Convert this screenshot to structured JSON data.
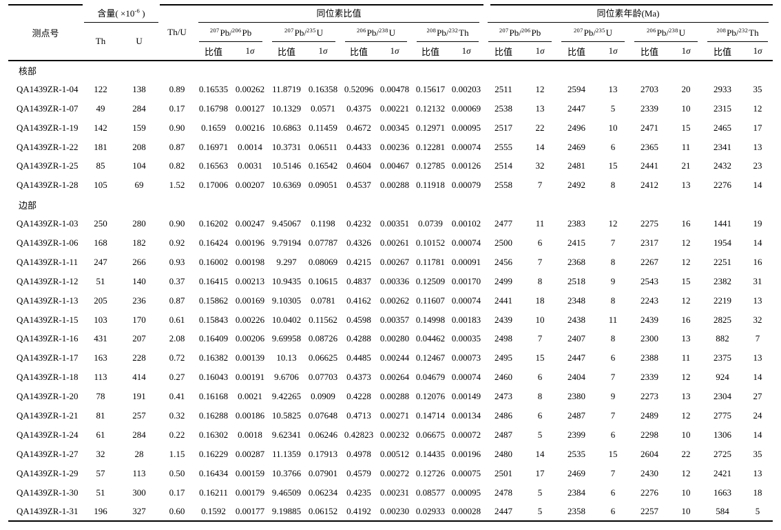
{
  "table": {
    "header": {
      "spot": "测点号",
      "content_group": {
        "prefix": "含量( ×10",
        "sup": "-6",
        "suffix": " )"
      },
      "th": "Th",
      "u": "U",
      "th_u": "Th/U",
      "ratio_group": "同位素比值",
      "age_group": "同位素年龄(Ma)",
      "isotopes": [
        {
          "sup1": "207",
          "base1": "Pb/",
          "sup2": "206",
          "base2": "Pb"
        },
        {
          "sup1": "207",
          "base1": "Pb/",
          "sup2": "235",
          "base2": "U"
        },
        {
          "sup1": "206",
          "base1": "Pb/",
          "sup2": "238",
          "base2": "U"
        },
        {
          "sup1": "208",
          "base1": "Pb/",
          "sup2": "232",
          "base2": "Th"
        }
      ],
      "sub": {
        "ratio": "比值",
        "sigma_num": "1",
        "sigma_sym": "σ"
      }
    },
    "sections": [
      {
        "label": "核部",
        "rows": [
          [
            "QA1439ZR-1-04",
            "122",
            "138",
            "0.89",
            "0.16535",
            "0.00262",
            "11.8719",
            "0.16358",
            "0.52096",
            "0.00478",
            "0.15617",
            "0.00203",
            "2511",
            "12",
            "2594",
            "13",
            "2703",
            "20",
            "2933",
            "35"
          ],
          [
            "QA1439ZR-1-07",
            "49",
            "284",
            "0.17",
            "0.16798",
            "0.00127",
            "10.1329",
            "0.0571",
            "0.4375",
            "0.00221",
            "0.12132",
            "0.00069",
            "2538",
            "13",
            "2447",
            "5",
            "2339",
            "10",
            "2315",
            "12"
          ],
          [
            "QA1439ZR-1-19",
            "142",
            "159",
            "0.90",
            "0.1659",
            "0.00216",
            "10.6863",
            "0.11459",
            "0.4672",
            "0.00345",
            "0.12971",
            "0.00095",
            "2517",
            "22",
            "2496",
            "10",
            "2471",
            "15",
            "2465",
            "17"
          ],
          [
            "QA1439ZR-1-22",
            "181",
            "208",
            "0.87",
            "0.16971",
            "0.0014",
            "10.3731",
            "0.06511",
            "0.4433",
            "0.00236",
            "0.12281",
            "0.00074",
            "2555",
            "14",
            "2469",
            "6",
            "2365",
            "11",
            "2341",
            "13"
          ],
          [
            "QA1439ZR-1-25",
            "85",
            "104",
            "0.82",
            "0.16563",
            "0.0031",
            "10.5146",
            "0.16542",
            "0.4604",
            "0.00467",
            "0.12785",
            "0.00126",
            "2514",
            "32",
            "2481",
            "15",
            "2441",
            "21",
            "2432",
            "23"
          ],
          [
            "QA1439ZR-1-28",
            "105",
            "69",
            "1.52",
            "0.17006",
            "0.00207",
            "10.6369",
            "0.09051",
            "0.4537",
            "0.00288",
            "0.11918",
            "0.00079",
            "2558",
            "7",
            "2492",
            "8",
            "2412",
            "13",
            "2276",
            "14"
          ]
        ]
      },
      {
        "label": "边部",
        "rows": [
          [
            "QA1439ZR-1-03",
            "250",
            "280",
            "0.90",
            "0.16202",
            "0.00247",
            "9.45067",
            "0.1198",
            "0.4232",
            "0.00351",
            "0.0739",
            "0.00102",
            "2477",
            "11",
            "2383",
            "12",
            "2275",
            "16",
            "1441",
            "19"
          ],
          [
            "QA1439ZR-1-06",
            "168",
            "182",
            "0.92",
            "0.16424",
            "0.00196",
            "9.79194",
            "0.07787",
            "0.4326",
            "0.00261",
            "0.10152",
            "0.00074",
            "2500",
            "6",
            "2415",
            "7",
            "2317",
            "12",
            "1954",
            "14"
          ],
          [
            "QA1439ZR-1-11",
            "247",
            "266",
            "0.93",
            "0.16002",
            "0.00198",
            "9.297",
            "0.08069",
            "0.4215",
            "0.00267",
            "0.11781",
            "0.00091",
            "2456",
            "7",
            "2368",
            "8",
            "2267",
            "12",
            "2251",
            "16"
          ],
          [
            "QA1439ZR-1-12",
            "51",
            "140",
            "0.37",
            "0.16415",
            "0.00213",
            "10.9435",
            "0.10615",
            "0.4837",
            "0.00336",
            "0.12509",
            "0.00170",
            "2499",
            "8",
            "2518",
            "9",
            "2543",
            "15",
            "2382",
            "31"
          ],
          [
            "QA1439ZR-1-13",
            "205",
            "236",
            "0.87",
            "0.15862",
            "0.00169",
            "9.10305",
            "0.0781",
            "0.4162",
            "0.00262",
            "0.11607",
            "0.00074",
            "2441",
            "18",
            "2348",
            "8",
            "2243",
            "12",
            "2219",
            "13"
          ],
          [
            "QA1439ZR-1-15",
            "103",
            "170",
            "0.61",
            "0.15843",
            "0.00226",
            "10.0402",
            "0.11562",
            "0.4598",
            "0.00357",
            "0.14998",
            "0.00183",
            "2439",
            "10",
            "2438",
            "11",
            "2439",
            "16",
            "2825",
            "32"
          ],
          [
            "QA1439ZR-1-16",
            "431",
            "207",
            "2.08",
            "0.16409",
            "0.00206",
            "9.69958",
            "0.08726",
            "0.4288",
            "0.00280",
            "0.04462",
            "0.00035",
            "2498",
            "7",
            "2407",
            "8",
            "2300",
            "13",
            "882",
            "7"
          ],
          [
            "QA1439ZR-1-17",
            "163",
            "228",
            "0.72",
            "0.16382",
            "0.00139",
            "10.13",
            "0.06625",
            "0.4485",
            "0.00244",
            "0.12467",
            "0.00073",
            "2495",
            "15",
            "2447",
            "6",
            "2388",
            "11",
            "2375",
            "13"
          ],
          [
            "QA1439ZR-1-18",
            "113",
            "414",
            "0.27",
            "0.16043",
            "0.00191",
            "9.6706",
            "0.07703",
            "0.4373",
            "0.00264",
            "0.04679",
            "0.00074",
            "2460",
            "6",
            "2404",
            "7",
            "2339",
            "12",
            "924",
            "14"
          ],
          [
            "QA1439ZR-1-20",
            "78",
            "191",
            "0.41",
            "0.16168",
            "0.0021",
            "9.42265",
            "0.0909",
            "0.4228",
            "0.00288",
            "0.12076",
            "0.00149",
            "2473",
            "8",
            "2380",
            "9",
            "2273",
            "13",
            "2304",
            "27"
          ],
          [
            "QA1439ZR-1-21",
            "81",
            "257",
            "0.32",
            "0.16288",
            "0.00186",
            "10.5825",
            "0.07648",
            "0.4713",
            "0.00271",
            "0.14714",
            "0.00134",
            "2486",
            "6",
            "2487",
            "7",
            "2489",
            "12",
            "2775",
            "24"
          ],
          [
            "QA1439ZR-1-24",
            "61",
            "284",
            "0.22",
            "0.16302",
            "0.0018",
            "9.62341",
            "0.06246",
            "0.42823",
            "0.00232",
            "0.06675",
            "0.00072",
            "2487",
            "5",
            "2399",
            "6",
            "2298",
            "10",
            "1306",
            "14"
          ],
          [
            "QA1439ZR-1-27",
            "32",
            "28",
            "1.15",
            "0.16229",
            "0.00287",
            "11.1359",
            "0.17913",
            "0.4978",
            "0.00512",
            "0.14435",
            "0.00196",
            "2480",
            "14",
            "2535",
            "15",
            "2604",
            "22",
            "2725",
            "35"
          ],
          [
            "QA1439ZR-1-29",
            "57",
            "113",
            "0.50",
            "0.16434",
            "0.00159",
            "10.3766",
            "0.07901",
            "0.4579",
            "0.00272",
            "0.12726",
            "0.00075",
            "2501",
            "17",
            "2469",
            "7",
            "2430",
            "12",
            "2421",
            "13"
          ],
          [
            "QA1439ZR-1-30",
            "51",
            "300",
            "0.17",
            "0.16211",
            "0.00179",
            "9.46509",
            "0.06234",
            "0.4235",
            "0.00231",
            "0.08577",
            "0.00095",
            "2478",
            "5",
            "2384",
            "6",
            "2276",
            "10",
            "1663",
            "18"
          ],
          [
            "QA1439ZR-1-31",
            "196",
            "327",
            "0.60",
            "0.1592",
            "0.00177",
            "9.19885",
            "0.06152",
            "0.4192",
            "0.00230",
            "0.02933",
            "0.00028",
            "2447",
            "5",
            "2358",
            "6",
            "2257",
            "10",
            "584",
            "5"
          ]
        ]
      }
    ]
  }
}
